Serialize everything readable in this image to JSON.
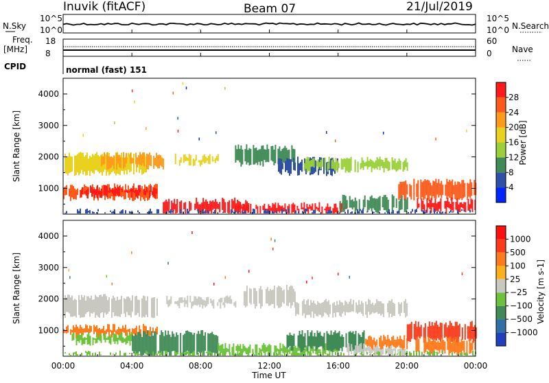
{
  "header": {
    "station": "Inuvik (fitACF)",
    "beam": "Beam 07",
    "date": "21/Jul/2019"
  },
  "noise_panel": {
    "left_label": "N.Sky",
    "left_ticks": [
      "10^5",
      "10^0"
    ],
    "right_ticks": [
      "10^5",
      "10^0"
    ],
    "right_label": "N.Search"
  },
  "freq_panel": {
    "left_label_1": "Freq.",
    "left_label_2": "[MHz]",
    "left_ticks": [
      "18",
      "8"
    ],
    "right_ticks": [
      "60",
      "0"
    ],
    "right_label": "Nave",
    "cpid_label": "CPID",
    "cpid_value": "normal (fast) 151"
  },
  "time_axis": {
    "xlabel": "Time UT",
    "tick_labels": [
      "00:00",
      "04:00",
      "08:00",
      "12:00",
      "16:00",
      "20:00",
      "00:00"
    ]
  },
  "chart_data": [
    {
      "type": "heatmap",
      "panel": "power",
      "ylabel": "Slant Range [km]",
      "yticks": [
        1000,
        2000,
        3000,
        4000
      ],
      "ylim": [
        180,
        4500
      ],
      "xlim_hours": [
        0,
        24
      ],
      "colorbar_label": "Power [dB]",
      "colorbar_ticks": [
        "4",
        "8",
        "12",
        "16",
        "20",
        "24",
        "28"
      ],
      "colorbar_colors": [
        "#0026ff",
        "#2f4fa8",
        "#3f8a55",
        "#9ad13a",
        "#e8d21f",
        "#ff9a1a",
        "#ff5a1a",
        "#ff1a1a"
      ],
      "regions": [
        {
          "t0": 0.0,
          "t1": 4.8,
          "r0": 1500,
          "r1": 2050,
          "color": "#e8d21f"
        },
        {
          "t0": 2.2,
          "t1": 5.8,
          "r0": 1700,
          "r1": 2050,
          "color": "#ff9a1a"
        },
        {
          "t0": 0.0,
          "t1": 5.5,
          "r0": 700,
          "r1": 1050,
          "color": "#ff5a1a"
        },
        {
          "t0": 1.0,
          "t1": 5.5,
          "r0": 780,
          "r1": 1000,
          "color": "#ff1a1a"
        },
        {
          "t0": 5.8,
          "t1": 10.8,
          "r0": 250,
          "r1": 600,
          "color": "#ff1a1a"
        },
        {
          "t0": 10.0,
          "t1": 16.5,
          "r0": 250,
          "r1": 450,
          "color": "#ff1a1a"
        },
        {
          "t0": 6.5,
          "t1": 9.0,
          "r0": 1800,
          "r1": 2000,
          "color": "#e8d21f"
        },
        {
          "t0": 10.0,
          "t1": 13.5,
          "r0": 1800,
          "r1": 2300,
          "color": "#3f8a55"
        },
        {
          "t0": 12.5,
          "t1": 16.0,
          "r0": 1500,
          "r1": 1900,
          "color": "#2f4fa8"
        },
        {
          "t0": 14.0,
          "t1": 20.0,
          "r0": 1600,
          "r1": 1900,
          "color": "#9ad13a"
        },
        {
          "t0": 19.5,
          "t1": 24.0,
          "r0": 700,
          "r1": 1200,
          "color": "#ff5a1a"
        },
        {
          "t0": 20.5,
          "t1": 24.0,
          "r0": 300,
          "r1": 600,
          "color": "#ff1a1a"
        },
        {
          "t0": 16.0,
          "t1": 20.0,
          "r0": 300,
          "r1": 700,
          "color": "#3f8a55"
        },
        {
          "t0": 0.0,
          "t1": 24.0,
          "r0": 180,
          "r1": 250,
          "color": "#2f4fa8"
        }
      ]
    },
    {
      "type": "heatmap",
      "panel": "velocity",
      "ylabel": "Slant Range [km]",
      "yticks": [
        1000,
        2000,
        3000,
        4000
      ],
      "ylim": [
        180,
        4500
      ],
      "xlim_hours": [
        0,
        24
      ],
      "colorbar_label": "Velocity [m s-1]",
      "colorbar_ticks": [
        "1000",
        "500",
        "100",
        "25",
        "−25",
        "−100",
        "−500",
        "−1000"
      ],
      "colorbar_colors": [
        "#1f3fbf",
        "#2f6fa8",
        "#3f8a55",
        "#6cc23a",
        "#c8c8c0",
        "#ffb01a",
        "#ff7a1a",
        "#ff3a1a",
        "#ff1010"
      ],
      "regions": [
        {
          "t0": 0.0,
          "t1": 5.5,
          "r0": 1500,
          "r1": 2050,
          "color": "#c8c8c0"
        },
        {
          "t0": 6.0,
          "t1": 10.0,
          "r0": 1800,
          "r1": 2000,
          "color": "#c8c8c0"
        },
        {
          "t0": 10.5,
          "t1": 13.5,
          "r0": 1800,
          "r1": 2350,
          "color": "#c8c8c0"
        },
        {
          "t0": 13.5,
          "t1": 20.0,
          "r0": 1500,
          "r1": 1900,
          "color": "#c8c8c0"
        },
        {
          "t0": 0.0,
          "t1": 5.5,
          "r0": 850,
          "r1": 1100,
          "color": "#ff7a1a"
        },
        {
          "t0": 0.5,
          "t1": 4.0,
          "r0": 600,
          "r1": 850,
          "color": "#6cc23a"
        },
        {
          "t0": 4.0,
          "t1": 9.0,
          "r0": 250,
          "r1": 900,
          "color": "#3f8a55"
        },
        {
          "t0": 9.0,
          "t1": 16.0,
          "r0": 250,
          "r1": 500,
          "color": "#6cc23a"
        },
        {
          "t0": 13.0,
          "t1": 17.5,
          "r0": 400,
          "r1": 900,
          "color": "#3f8a55"
        },
        {
          "t0": 16.5,
          "t1": 20.0,
          "r0": 250,
          "r1": 500,
          "color": "#c8c8c0"
        },
        {
          "t0": 17.5,
          "t1": 20.0,
          "r0": 450,
          "r1": 750,
          "color": "#ff7a1a"
        },
        {
          "t0": 20.0,
          "t1": 24.0,
          "r0": 700,
          "r1": 1200,
          "color": "#ff3a1a"
        },
        {
          "t0": 20.5,
          "t1": 24.0,
          "r0": 300,
          "r1": 700,
          "color": "#ff7a1a"
        },
        {
          "t0": 0.0,
          "t1": 24.0,
          "r0": 180,
          "r1": 250,
          "color": "#6cc23a"
        }
      ]
    }
  ]
}
